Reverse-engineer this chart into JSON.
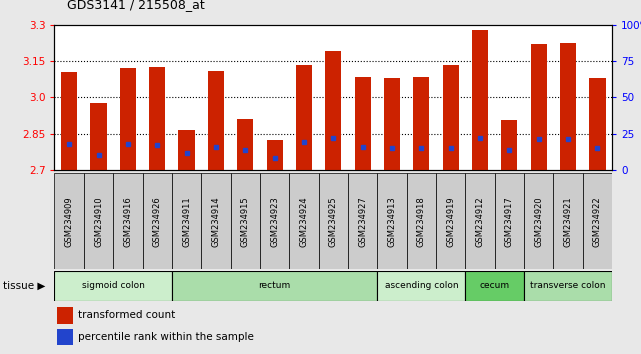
{
  "title": "GDS3141 / 215508_at",
  "samples": [
    "GSM234909",
    "GSM234910",
    "GSM234916",
    "GSM234926",
    "GSM234911",
    "GSM234914",
    "GSM234915",
    "GSM234923",
    "GSM234924",
    "GSM234925",
    "GSM234927",
    "GSM234913",
    "GSM234918",
    "GSM234919",
    "GSM234912",
    "GSM234917",
    "GSM234920",
    "GSM234921",
    "GSM234922"
  ],
  "transformed_count": [
    3.105,
    2.975,
    3.12,
    3.125,
    2.865,
    3.11,
    2.91,
    2.825,
    3.135,
    3.19,
    3.085,
    3.08,
    3.085,
    3.135,
    3.28,
    2.905,
    3.22,
    3.225,
    3.08
  ],
  "percentile_rank": [
    18,
    10,
    18,
    17,
    12,
    16,
    14,
    8,
    19,
    22,
    16,
    15,
    15,
    15,
    22,
    14,
    21,
    21,
    15
  ],
  "tissue_groups": [
    {
      "label": "sigmoid colon",
      "start": 0,
      "end": 4,
      "color": "#cceecc"
    },
    {
      "label": "rectum",
      "start": 4,
      "end": 11,
      "color": "#aaddaa"
    },
    {
      "label": "ascending colon",
      "start": 11,
      "end": 14,
      "color": "#cceecc"
    },
    {
      "label": "cecum",
      "start": 14,
      "end": 16,
      "color": "#66cc66"
    },
    {
      "label": "transverse colon",
      "start": 16,
      "end": 19,
      "color": "#aaddaa"
    }
  ],
  "bar_color": "#cc2200",
  "percentile_color": "#2244cc",
  "ymin": 2.7,
  "ymax": 3.3,
  "yticks": [
    2.7,
    2.85,
    3.0,
    3.15,
    3.3
  ],
  "right_yticks": [
    0,
    25,
    50,
    75,
    100
  ],
  "grid_values": [
    2.85,
    3.0,
    3.15
  ],
  "fig_bg": "#e8e8e8",
  "plot_bg": "#ffffff",
  "xtick_bg": "#cccccc"
}
